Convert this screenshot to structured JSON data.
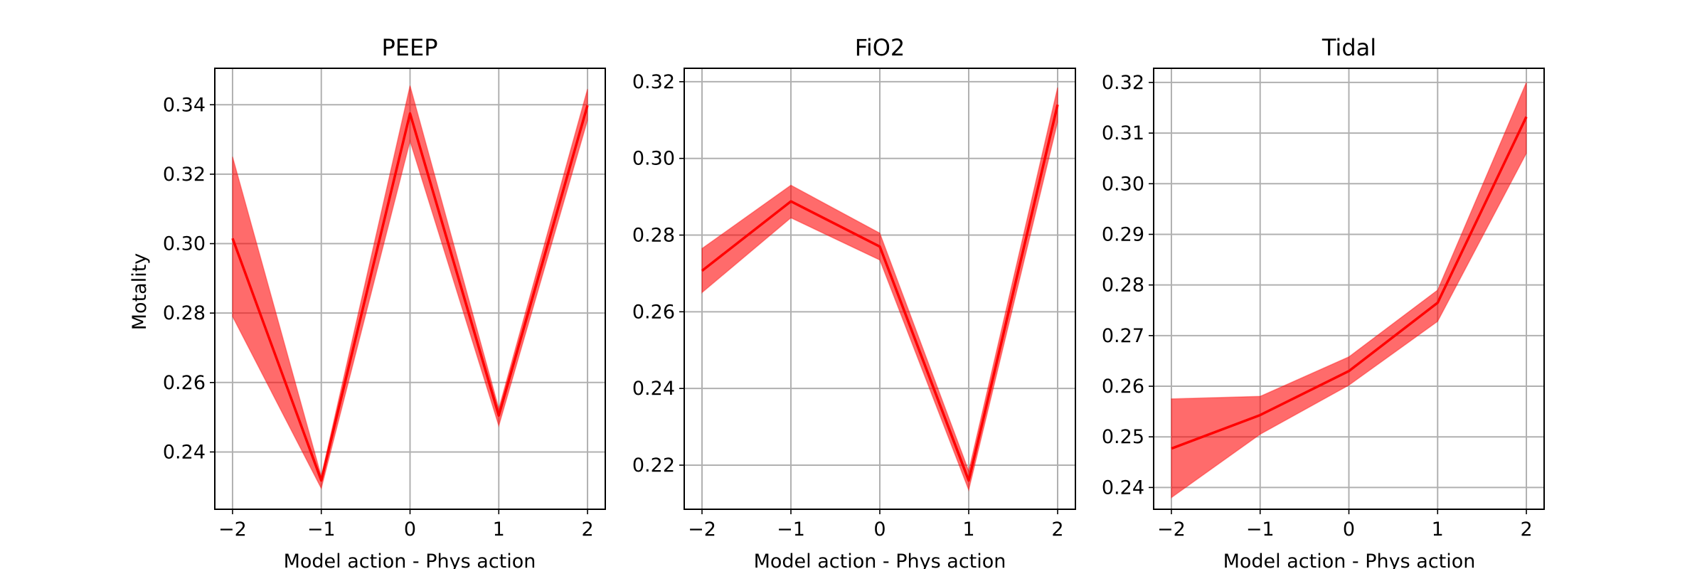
{
  "chart_data": [
    {
      "type": "line",
      "title": "PEEP",
      "xlabel": "Model action - Phys action",
      "ylabel": "Motality",
      "x": [
        -2,
        -1,
        0,
        1,
        2
      ],
      "xticks": [
        "−2",
        "−1",
        "0",
        "1",
        "2"
      ],
      "xlim": [
        -2.2,
        2.2
      ],
      "ylim": [
        0.2235,
        0.3505
      ],
      "yticks": [
        0.24,
        0.26,
        0.28,
        0.3,
        0.32,
        0.34
      ],
      "ytick_labels": [
        "0.24",
        "0.26",
        "0.28",
        "0.30",
        "0.32",
        "0.34"
      ],
      "series": [
        {
          "values": [
            0.3015,
            0.2318,
            0.3375,
            0.2505,
            0.3398
          ],
          "lower": [
            0.279,
            0.2295,
            0.3295,
            0.2475,
            0.3355
          ],
          "upper": [
            0.325,
            0.233,
            0.3455,
            0.2525,
            0.3445
          ]
        }
      ],
      "grid": true
    },
    {
      "type": "line",
      "title": "FiO2",
      "xlabel": "Model action - Phys action",
      "ylabel": "",
      "x": [
        -2,
        -1,
        0,
        1,
        2
      ],
      "xticks": [
        "−2",
        "−1",
        "0",
        "1",
        "2"
      ],
      "xlim": [
        -2.2,
        2.2
      ],
      "ylim": [
        0.2085,
        0.3235
      ],
      "yticks": [
        0.22,
        0.24,
        0.26,
        0.28,
        0.3,
        0.32
      ],
      "ytick_labels": [
        "0.22",
        "0.24",
        "0.26",
        "0.28",
        "0.30",
        "0.32"
      ],
      "series": [
        {
          "values": [
            0.2707,
            0.2888,
            0.277,
            0.216,
            0.314
          ],
          "lower": [
            0.265,
            0.2845,
            0.2735,
            0.2135,
            0.3095
          ],
          "upper": [
            0.2765,
            0.293,
            0.2805,
            0.2185,
            0.3185
          ]
        }
      ],
      "grid": true
    },
    {
      "type": "line",
      "title": "Tidal",
      "xlabel": "Model action - Phys action",
      "ylabel": "",
      "x": [
        -2,
        -1,
        0,
        1,
        2
      ],
      "xticks": [
        "−2",
        "−1",
        "0",
        "1",
        "2"
      ],
      "xlim": [
        -2.2,
        2.2
      ],
      "ylim": [
        0.2357,
        0.3228
      ],
      "yticks": [
        0.24,
        0.25,
        0.26,
        0.27,
        0.28,
        0.29,
        0.3,
        0.31,
        0.32
      ],
      "ytick_labels": [
        "0.24",
        "0.25",
        "0.26",
        "0.27",
        "0.28",
        "0.29",
        "0.30",
        "0.31",
        "0.32"
      ],
      "series": [
        {
          "values": [
            0.2477,
            0.2543,
            0.263,
            0.2765,
            0.3132
          ],
          "lower": [
            0.238,
            0.2505,
            0.2602,
            0.2728,
            0.306
          ],
          "upper": [
            0.2575,
            0.258,
            0.2658,
            0.279,
            0.32
          ]
        }
      ],
      "grid": true
    }
  ],
  "colors": {
    "line": "#ff0000",
    "band": "#ff0000",
    "grid": "#b0b0b0",
    "frame": "#000000"
  }
}
